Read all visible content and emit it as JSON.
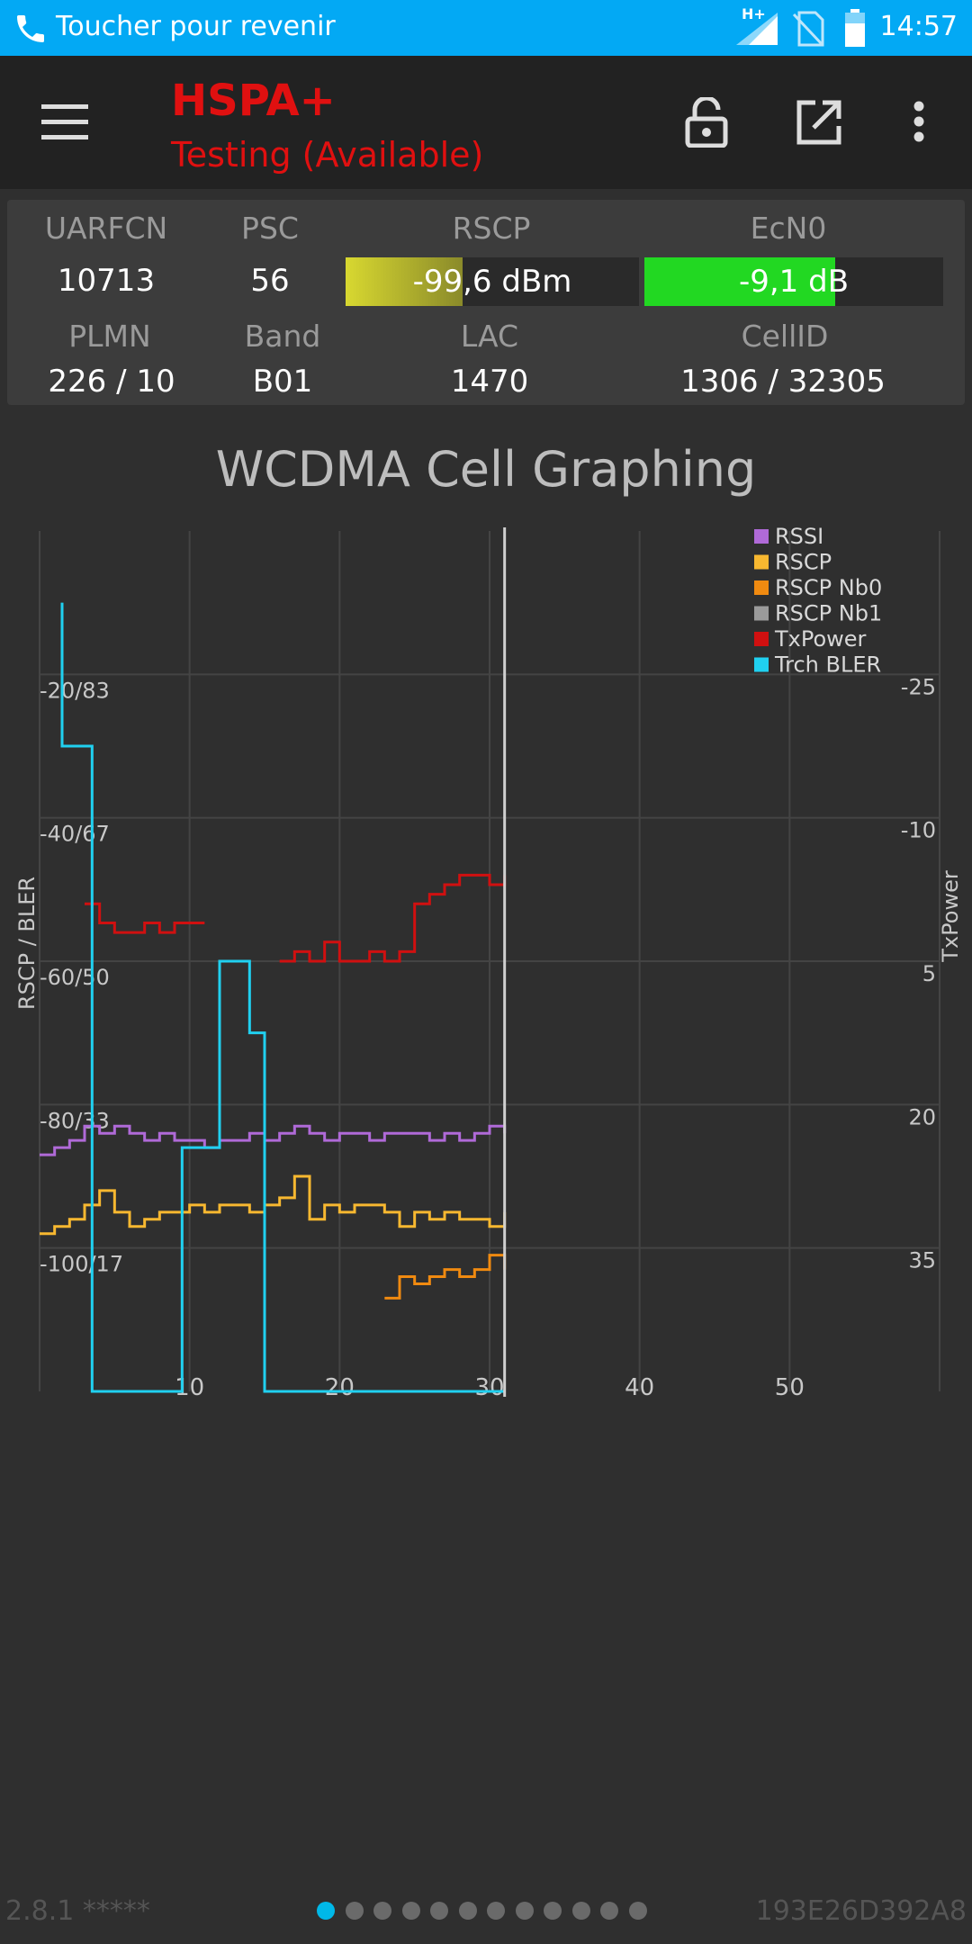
{
  "status_bar": {
    "call_text": "Toucher pour revenir",
    "network_indicator": "H+",
    "time": "14:57",
    "icons": [
      "phone-icon",
      "signal-icon",
      "no-sim-icon",
      "battery-icon"
    ]
  },
  "toolbar": {
    "technology": "HSPA+",
    "status": "Testing (Available)",
    "icons": [
      "menu-icon",
      "unlock-icon",
      "open-external-icon",
      "more-vert-icon"
    ]
  },
  "cell_info": {
    "labels": {
      "uarfcn": "UARFCN",
      "psc": "PSC",
      "rscp": "RSCP",
      "ecn0": "EcN0",
      "plmn": "PLMN",
      "band": "Band",
      "lac": "LAC",
      "cellid": "CellID"
    },
    "values": {
      "uarfcn": "10713",
      "psc": "56",
      "rscp": "-99,6 dBm",
      "ecn0": "-9,1 dB",
      "plmn": "226 / 10",
      "band": "B01",
      "lac": "1470",
      "cellid": "1306 / 32305"
    },
    "rscp_meter_fraction": 0.4,
    "ecn0_meter_fraction": 0.64,
    "colors": {
      "rscp_meter": "#d8d830",
      "ecn0_meter": "#22d822"
    }
  },
  "chart_data": {
    "type": "line",
    "title": "WCDMA Cell Graphing",
    "ylabel": "RSCP / BLER",
    "y2label": "TxPower",
    "x_ticks": [
      "10",
      "20",
      "30",
      "40",
      "50"
    ],
    "y_ticks": [
      "-20/83",
      "-40/67",
      "-60/50",
      "-80/33",
      "-100/17"
    ],
    "y2_ticks": [
      "-25",
      "-10",
      "5",
      "20",
      "35"
    ],
    "xlim": [
      0,
      60
    ],
    "ylim": [
      -120,
      0
    ],
    "y2lim": [
      -40,
      50
    ],
    "legend_position": "top-right",
    "grid": true,
    "cursor_x": 31,
    "series": [
      {
        "name": "RSSI",
        "color": "#b06ad8",
        "axis": "y",
        "x": [
          0,
          1,
          2,
          3,
          4,
          5,
          6,
          7,
          8,
          9,
          10,
          11,
          12,
          13,
          14,
          15,
          16,
          17,
          18,
          19,
          20,
          21,
          22,
          23,
          24,
          25,
          26,
          27,
          28,
          29,
          30,
          31
        ],
        "y": [
          -87,
          -86,
          -85,
          -83,
          -84,
          -83,
          -84,
          -85,
          -84,
          -85,
          -85,
          -86,
          -85,
          -85,
          -84,
          -85,
          -84,
          -83,
          -84,
          -85,
          -84,
          -84,
          -85,
          -84,
          -84,
          -84,
          -85,
          -84,
          -85,
          -84,
          -83,
          -84
        ]
      },
      {
        "name": "RSCP",
        "color": "#f8b830",
        "axis": "y",
        "x": [
          0,
          1,
          2,
          3,
          4,
          5,
          6,
          7,
          8,
          9,
          10,
          11,
          12,
          13,
          14,
          15,
          16,
          17,
          18,
          19,
          20,
          21,
          22,
          23,
          24,
          25,
          26,
          27,
          28,
          29,
          30,
          31
        ],
        "y": [
          -98,
          -97,
          -96,
          -94,
          -92,
          -95,
          -97,
          -96,
          -95,
          -95,
          -94,
          -95,
          -94,
          -94,
          -95,
          -94,
          -93,
          -90,
          -96,
          -94,
          -95,
          -94,
          -94,
          -95,
          -97,
          -95,
          -96,
          -95,
          -96,
          -96,
          -97,
          -95
        ]
      },
      {
        "name": "RSCP Nb0",
        "color": "#f08a10",
        "axis": "y",
        "x": [
          23,
          24,
          25,
          26,
          27,
          28,
          29,
          30,
          31
        ],
        "y": [
          -107,
          -104,
          -105,
          -104,
          -103,
          -104,
          -103,
          -101,
          -103
        ]
      },
      {
        "name": "RSCP Nb1",
        "color": "#9a9a9a",
        "axis": "y",
        "x": [],
        "y": []
      },
      {
        "name": "TxPower",
        "color": "#d01010",
        "axis": "y2",
        "x": [
          3,
          4,
          5,
          6,
          7,
          8,
          9,
          10,
          11,
          12,
          13,
          14,
          15,
          16,
          17,
          18,
          19,
          20,
          21,
          22,
          23,
          24,
          25,
          26,
          27,
          28,
          29,
          30,
          31
        ],
        "y": [
          11,
          9,
          8,
          8,
          9,
          8,
          9,
          9,
          9,
          null,
          null,
          null,
          null,
          5,
          6,
          5,
          7,
          5,
          5,
          6,
          5,
          6,
          11,
          12,
          13,
          14,
          14,
          13,
          14
        ]
      },
      {
        "name": "Trch BLER",
        "color": "#20d0f0",
        "axis": "y",
        "x": [
          1.5,
          1.5,
          3.5,
          3.5,
          9.5,
          9.5,
          12,
          12,
          14,
          14,
          15,
          15,
          30,
          30,
          31
        ],
        "y": [
          -10,
          -30,
          -30,
          -120,
          -120,
          -86,
          -86,
          -60,
          -60,
          -70,
          -70,
          -120,
          -120,
          -120,
          -120
        ]
      }
    ]
  },
  "footer": {
    "version": "2.8.1 *****",
    "device_id": "193E26D392A8",
    "page_count": 12,
    "active_page": 0
  }
}
